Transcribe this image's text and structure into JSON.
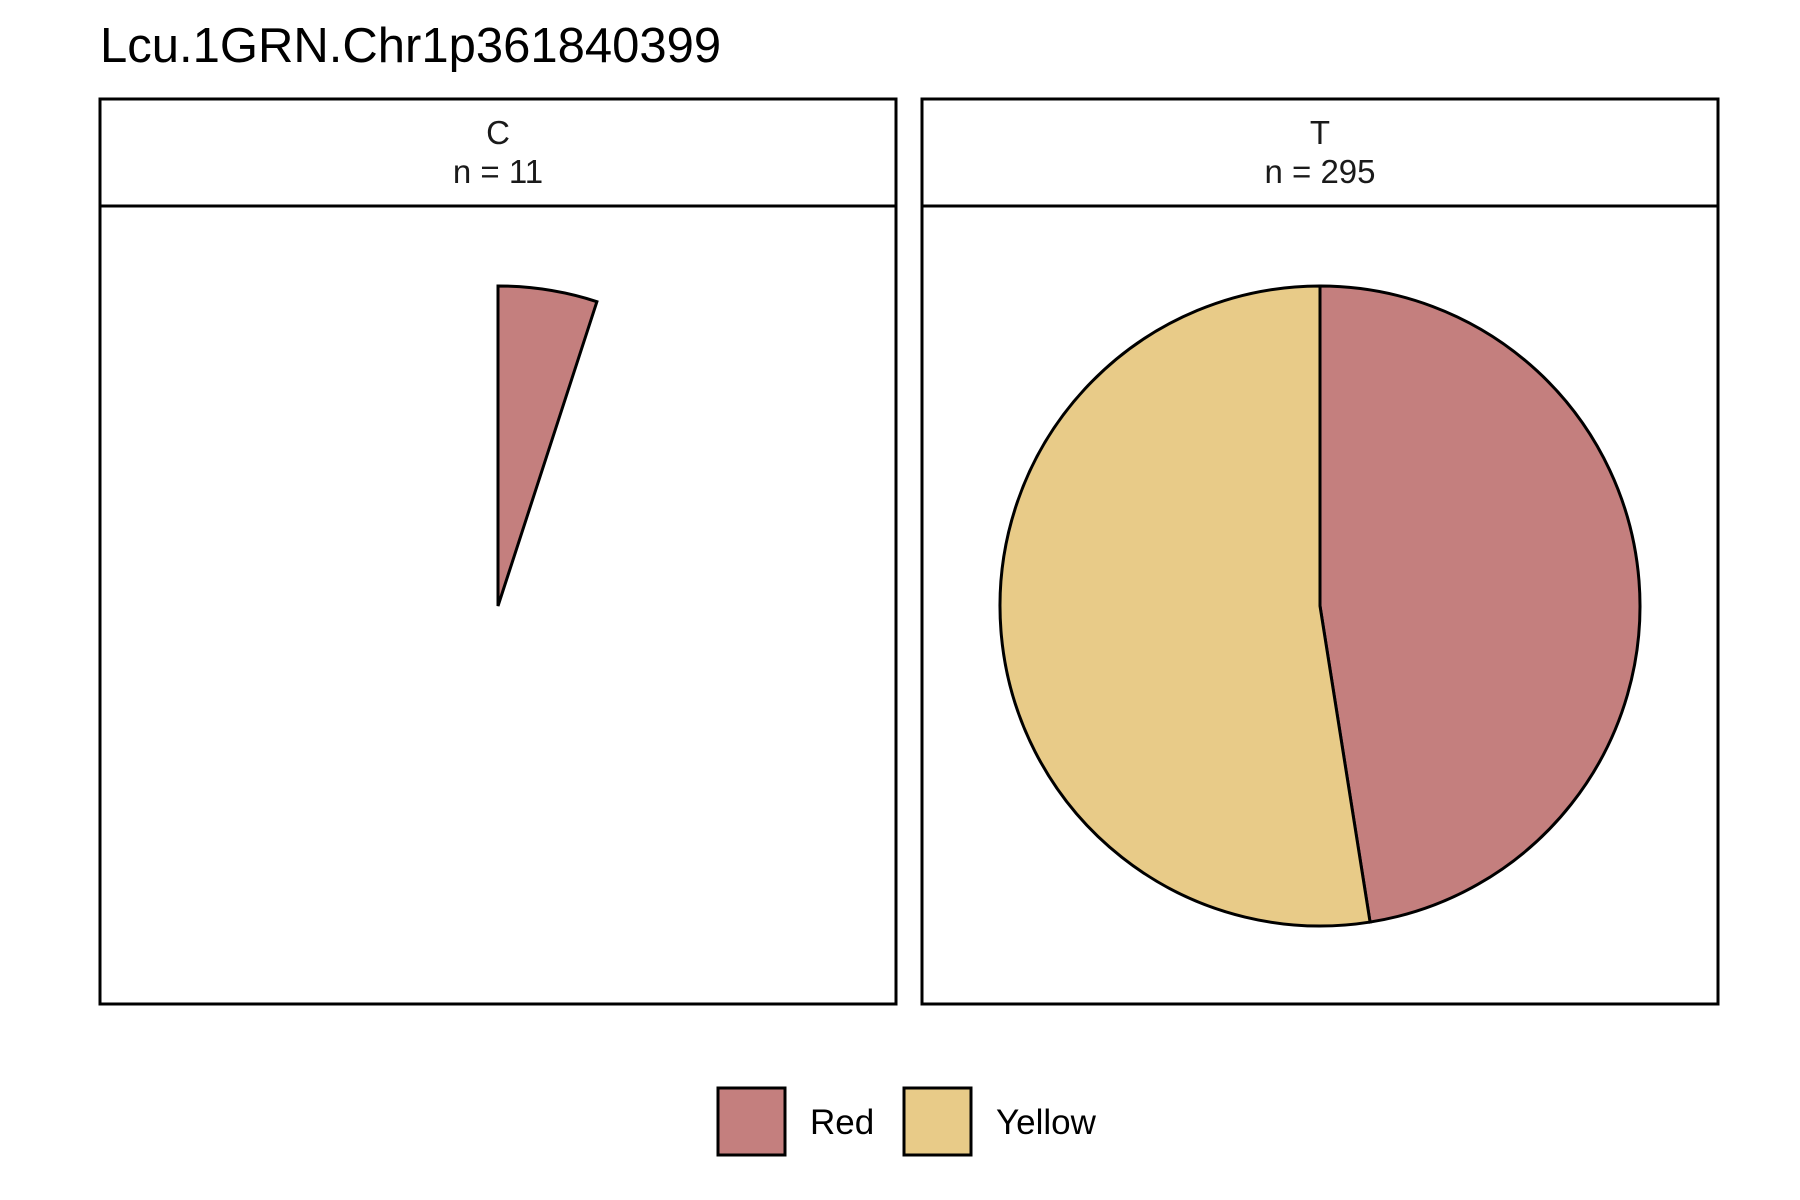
{
  "chart_data": {
    "type": "pie",
    "title": "Lcu.1GRN.Chr1p361840399",
    "categories": [
      "Red",
      "Yellow"
    ],
    "colors": {
      "Red": "#c47f7e",
      "Yellow": "#e8cb88"
    },
    "panels": [
      {
        "strip_label": "C",
        "n_label": "n = 11",
        "slices": [
          {
            "category": "Red",
            "value": 0.05
          }
        ]
      },
      {
        "strip_label": "T",
        "n_label": "n = 295",
        "slices": [
          {
            "category": "Red",
            "value": 0.475
          },
          {
            "category": "Yellow",
            "value": 0.525
          }
        ]
      }
    ],
    "legend": {
      "position": "bottom",
      "items": [
        {
          "label": "Red",
          "color": "#c47f7e"
        },
        {
          "label": "Yellow",
          "color": "#e8cb88"
        }
      ]
    }
  }
}
